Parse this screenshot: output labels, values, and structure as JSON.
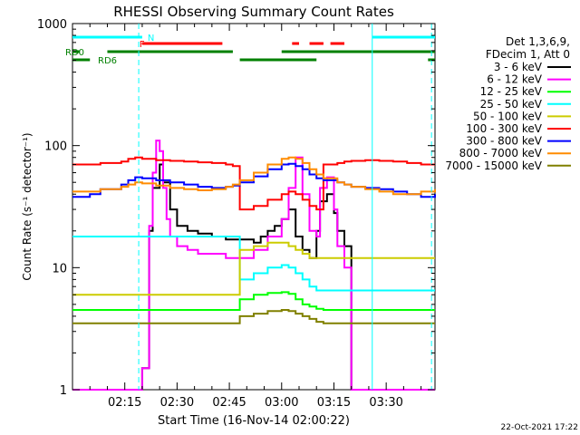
{
  "chart_data": {
    "type": "line",
    "title": "RHESSI Observing Summary Count Rates",
    "xlabel": "Start Time (16-Nov-14 02:00:22)",
    "ylabel": "Count Rate (s⁻¹ detector⁻¹)",
    "yscale": "log",
    "xlim_min": [
      0,
      104
    ],
    "ylim": [
      1,
      1000
    ],
    "xticks": [
      {
        "min": 15,
        "label": "02:15"
      },
      {
        "min": 30,
        "label": "02:30"
      },
      {
        "min": 45,
        "label": "02:45"
      },
      {
        "min": 60,
        "label": "03:00"
      },
      {
        "min": 75,
        "label": "03:15"
      },
      {
        "min": 90,
        "label": "03:30"
      }
    ],
    "yticks": [
      {
        "value": 1,
        "label": "1"
      },
      {
        "value": 10,
        "label": "10"
      },
      {
        "value": 100,
        "label": "100"
      },
      {
        "value": 1000,
        "label": "1000"
      }
    ],
    "legend_header": [
      "Det 1,3,6,9,",
      "FDecim 1, Att 0"
    ],
    "legend_position": "right",
    "series": [
      {
        "name": "3 - 6 keV",
        "color": "#000000",
        "x": [
          0,
          5,
          8,
          14,
          16,
          18,
          20,
          22,
          23,
          25,
          26,
          28,
          30,
          33,
          36,
          40,
          44,
          48,
          52,
          54,
          56,
          58,
          60,
          62,
          64,
          66,
          68,
          70,
          71,
          73,
          75,
          76,
          78,
          80,
          84,
          88,
          92,
          96,
          100,
          104
        ],
        "y": [
          1,
          1,
          1,
          1,
          1,
          1,
          1.5,
          20,
          45,
          70,
          50,
          30,
          22,
          20,
          19,
          18,
          17,
          17,
          16,
          18,
          20,
          22,
          25,
          30,
          18,
          14,
          12,
          20,
          35,
          40,
          28,
          20,
          15,
          1,
          1,
          1,
          1,
          1,
          1,
          1
        ]
      },
      {
        "name": "6 - 12 keV",
        "color": "#ff00ff",
        "x": [
          0,
          5,
          8,
          14,
          16,
          18,
          20,
          22,
          23,
          24,
          25,
          26,
          27,
          28,
          30,
          33,
          36,
          40,
          44,
          48,
          52,
          56,
          60,
          62,
          64,
          66,
          68,
          70,
          71,
          73,
          75,
          76,
          78,
          80,
          84,
          88,
          92,
          96,
          100,
          104
        ],
        "y": [
          1,
          1,
          1,
          1,
          1,
          1,
          1.5,
          22,
          60,
          110,
          90,
          45,
          25,
          18,
          15,
          14,
          13,
          13,
          12,
          12,
          14,
          18,
          25,
          45,
          80,
          40,
          20,
          18,
          45,
          55,
          30,
          15,
          10,
          1,
          1,
          1,
          1,
          1,
          1,
          1
        ]
      },
      {
        "name": "12 - 25 keV",
        "color": "#00ff00",
        "x": [
          0,
          5,
          8,
          14,
          16,
          18,
          20,
          24,
          28,
          32,
          36,
          40,
          44,
          46,
          48,
          52,
          56,
          60,
          62,
          64,
          66,
          68,
          70,
          72,
          74,
          76,
          78,
          80,
          84,
          88,
          92,
          96,
          100,
          104
        ],
        "y": [
          4.5,
          4.5,
          4.5,
          4.5,
          4.5,
          4.5,
          4.5,
          4.5,
          4.5,
          4.5,
          4.5,
          4.5,
          4.5,
          4.5,
          5.5,
          6,
          6.2,
          6.3,
          6.1,
          5.5,
          5,
          4.8,
          4.6,
          4.5,
          4.5,
          4.5,
          4.5,
          4.5,
          4.5,
          4.5,
          4.5,
          4.5,
          4.5,
          4.5
        ]
      },
      {
        "name": "25 - 50 keV",
        "color": "#00ffff",
        "x": [
          0,
          5,
          8,
          14,
          16,
          18,
          20,
          24,
          28,
          32,
          36,
          40,
          44,
          46,
          48,
          52,
          56,
          60,
          62,
          64,
          66,
          68,
          70,
          72,
          76,
          78,
          80,
          84,
          88,
          92,
          96,
          100,
          104
        ],
        "y": [
          18,
          18,
          18,
          18,
          18,
          18,
          18,
          18,
          18,
          18,
          18,
          18,
          18,
          18,
          8,
          9,
          10,
          10.5,
          10,
          9,
          8,
          7,
          6.5,
          6.5,
          6.5,
          6.5,
          6.5,
          6.5,
          6.5,
          6.5,
          6.5,
          6.5,
          6.5
        ]
      },
      {
        "name": "50 - 100 keV",
        "color": "#cccc00",
        "x": [
          0,
          5,
          8,
          14,
          16,
          18,
          20,
          24,
          28,
          32,
          36,
          40,
          44,
          46,
          48,
          52,
          56,
          60,
          62,
          64,
          66,
          68,
          70,
          72,
          76,
          78,
          80,
          84,
          88,
          92,
          96,
          100,
          104
        ],
        "y": [
          6,
          6,
          6,
          6,
          6,
          6,
          6,
          6,
          6,
          6,
          6,
          6,
          6,
          6,
          14,
          15,
          16,
          16,
          15,
          14,
          13,
          12,
          12,
          12,
          12,
          12,
          12,
          12,
          12,
          12,
          12,
          12,
          12
        ]
      },
      {
        "name": "100 - 300 keV",
        "color": "#ff0000",
        "x": [
          0,
          5,
          8,
          14,
          16,
          18,
          20,
          24,
          28,
          32,
          36,
          40,
          44,
          46,
          48,
          52,
          56,
          60,
          62,
          64,
          66,
          68,
          70,
          72,
          76,
          78,
          80,
          84,
          88,
          92,
          96,
          100,
          104
        ],
        "y": [
          70,
          70,
          72,
          74,
          78,
          80,
          78,
          76,
          75,
          74,
          73,
          72,
          70,
          68,
          30,
          32,
          36,
          40,
          42,
          40,
          36,
          32,
          30,
          70,
          72,
          74,
          75,
          76,
          75,
          74,
          72,
          70,
          70
        ]
      },
      {
        "name": "300 - 800 keV",
        "color": "#0000ff",
        "x": [
          0,
          5,
          8,
          14,
          16,
          18,
          20,
          24,
          28,
          32,
          36,
          40,
          44,
          46,
          48,
          52,
          56,
          60,
          62,
          64,
          66,
          68,
          70,
          72,
          76,
          78,
          80,
          84,
          88,
          92,
          96,
          100,
          104
        ],
        "y": [
          38,
          40,
          44,
          48,
          52,
          55,
          54,
          52,
          50,
          48,
          46,
          45,
          46,
          47,
          50,
          56,
          64,
          70,
          71,
          68,
          64,
          58,
          54,
          52,
          50,
          48,
          46,
          45,
          44,
          42,
          40,
          38,
          40
        ]
      },
      {
        "name": "800 - 7000 keV",
        "color": "#ff8c00",
        "x": [
          0,
          5,
          8,
          14,
          16,
          18,
          20,
          24,
          28,
          32,
          36,
          40,
          44,
          46,
          48,
          52,
          56,
          60,
          62,
          64,
          66,
          68,
          70,
          72,
          76,
          78,
          80,
          84,
          88,
          92,
          96,
          100,
          104
        ],
        "y": [
          42,
          42,
          44,
          46,
          48,
          50,
          49,
          47,
          45,
          44,
          43,
          44,
          46,
          48,
          52,
          60,
          70,
          78,
          80,
          78,
          72,
          64,
          58,
          54,
          50,
          48,
          46,
          44,
          42,
          40,
          40,
          42,
          44
        ]
      },
      {
        "name": "7000 - 15000 keV",
        "color": "#808000",
        "x": [
          0,
          5,
          8,
          14,
          16,
          18,
          20,
          24,
          28,
          32,
          36,
          40,
          44,
          46,
          48,
          52,
          56,
          60,
          62,
          64,
          66,
          68,
          70,
          72,
          76,
          78,
          80,
          84,
          88,
          92,
          96,
          100,
          104
        ],
        "y": [
          3.5,
          3.5,
          3.5,
          3.5,
          3.5,
          3.5,
          3.5,
          3.5,
          3.5,
          3.5,
          3.5,
          3.5,
          3.5,
          3.5,
          4,
          4.2,
          4.4,
          4.5,
          4.4,
          4.2,
          4,
          3.8,
          3.6,
          3.5,
          3.5,
          3.5,
          3.5,
          3.5,
          3.5,
          3.5,
          3.5,
          3.5,
          3.5
        ]
      }
    ],
    "flags": {
      "N": {
        "label": "N",
        "color": "#00ffff",
        "segments": [
          [
            0,
            20
          ],
          [
            86,
            104
          ]
        ]
      },
      "F": {
        "label": "F",
        "color": "#ff0000",
        "segments": [
          [
            20,
            43
          ],
          [
            63,
            65
          ],
          [
            68,
            72
          ],
          [
            74,
            78
          ]
        ]
      },
      "RD0": {
        "label": "RD0",
        "color": "#008000",
        "segments": [
          [
            0,
            2
          ],
          [
            10,
            46
          ],
          [
            60,
            104
          ]
        ]
      },
      "RD6": {
        "label": "RD6",
        "color": "#008000",
        "segments": [
          [
            0,
            5
          ],
          [
            48,
            70
          ],
          [
            102,
            104
          ]
        ]
      }
    },
    "vlines": [
      {
        "min": 19,
        "style": "dashed",
        "color": "#00ffff"
      },
      {
        "min": 86,
        "style": "solid",
        "color": "#00ffff"
      },
      {
        "min": 103,
        "style": "dashed",
        "color": "#00ffff"
      }
    ]
  },
  "footer": {
    "timestamp": "22-Oct-2021 17:22"
  }
}
